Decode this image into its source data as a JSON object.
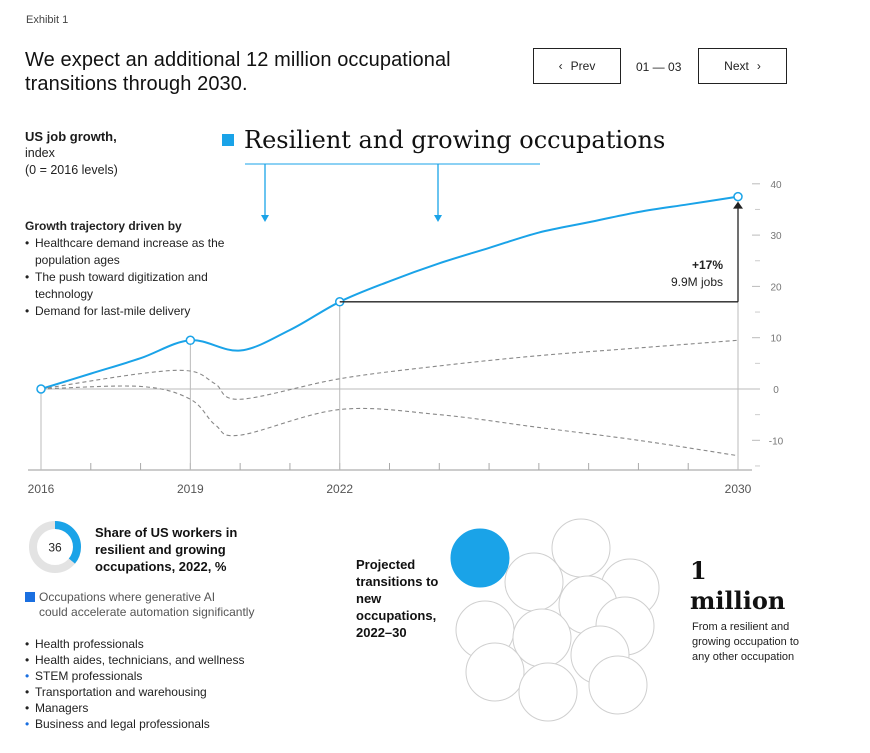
{
  "header": {
    "exhibit": "Exhibit 1",
    "title": "We expect an additional 12 million occupational transitions through 2030.",
    "prev_label": "Prev",
    "next_label": "Next",
    "pager": "01 — 03"
  },
  "chart_header": {
    "ylabel_title": "US job growth,",
    "ylabel_line2": "index",
    "ylabel_line3": "(0 = 2016 levels)",
    "series_heading": "Resilient and growing occupations",
    "series_color": "#1aa3e8"
  },
  "drivers": {
    "heading": "Growth trajectory driven by",
    "items": [
      "Healthcare demand increase as the population ages",
      "The push toward digitization and technology",
      "Demand for last-mile delivery"
    ]
  },
  "chart_data": {
    "type": "line",
    "title": "",
    "xlabel": "",
    "ylabel": "US job growth, index (0 = 2016 levels)",
    "xlim": [
      2016,
      2030
    ],
    "ylim": [
      -15,
      40
    ],
    "x_ticks": [
      2016,
      2019,
      2022,
      2030
    ],
    "y_ticks": [
      40,
      30,
      20,
      10,
      0,
      -10
    ],
    "grid": false,
    "series": [
      {
        "name": "Resilient and growing occupations",
        "style": "solid",
        "color": "#1aa3e8",
        "x": [
          2016,
          2017,
          2018,
          2019,
          2020,
          2021,
          2022,
          2023,
          2024,
          2025,
          2026,
          2027,
          2028,
          2029,
          2030
        ],
        "y": [
          0,
          3,
          6,
          9.5,
          7.5,
          11.5,
          17,
          21,
          24.5,
          27.5,
          30.5,
          32.5,
          34.5,
          36,
          37.5
        ]
      },
      {
        "style": "dashed",
        "color": "#888888",
        "x": [
          2016,
          2018,
          2019,
          2019.5,
          2020,
          2022,
          2024,
          2026,
          2028,
          2030
        ],
        "y": [
          0,
          3,
          3.5,
          1,
          -2,
          2,
          4.5,
          6.5,
          8,
          9.5
        ]
      },
      {
        "style": "dashed",
        "color": "#888888",
        "x": [
          2016,
          2018,
          2019,
          2019.5,
          2020,
          2022,
          2024,
          2026,
          2028,
          2030
        ],
        "y": [
          0,
          0.5,
          -2,
          -7,
          -9,
          -4,
          -5,
          -7.5,
          -10,
          -13
        ]
      }
    ],
    "annotation": {
      "pct": "+17%",
      "jobs": "9.9M jobs"
    }
  },
  "share": {
    "value": "36",
    "percent": 36,
    "text": "Share of US workers in resilient and growing occupations, 2022, %",
    "ring_color": "#1aa3e8"
  },
  "genai": {
    "line1": "Occupations where generative AI",
    "line2": "could accelerate automation significantly",
    "color": "#1a6fe0"
  },
  "occupations": [
    {
      "label": "Health professionals",
      "highlight": false
    },
    {
      "label": "Health aides, technicians, and wellness",
      "highlight": false
    },
    {
      "label": "STEM professionals",
      "highlight": true
    },
    {
      "label": "Transportation and warehousing",
      "highlight": false
    },
    {
      "label": "Managers",
      "highlight": false
    },
    {
      "label": "Business and legal professionals",
      "highlight": true
    }
  ],
  "transitions": {
    "label": "Projected transitions to new occupations, 2022–30",
    "big_number": "1",
    "big_unit": "million",
    "desc": "From a resilient and growing occupation to any other occupation",
    "circle_count": 12,
    "filled_count": 1
  }
}
